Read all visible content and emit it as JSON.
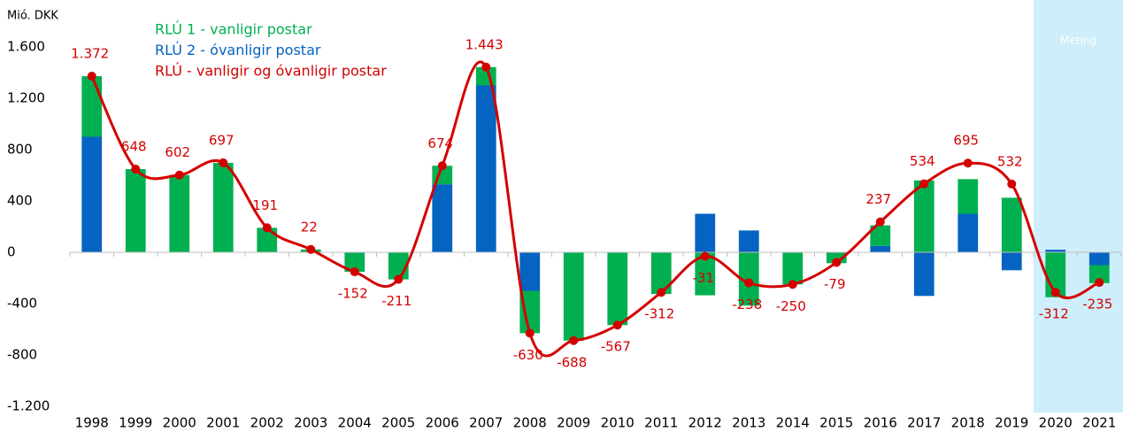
{
  "chart_data": {
    "type": "bar",
    "stacked": true,
    "ylabel": "Mió. DKK",
    "categories": [
      "1998",
      "1999",
      "2000",
      "2001",
      "2002",
      "2003",
      "2004",
      "2005",
      "2006",
      "2007",
      "2008",
      "2009",
      "2010",
      "2011",
      "2012",
      "2013",
      "2014",
      "2015",
      "2016",
      "2017",
      "2018",
      "2019",
      "2020",
      "2021"
    ],
    "series": [
      {
        "name": "RLÚ 2 - óvanligir postar",
        "color": "#0563c1",
        "values": [
          900,
          0,
          0,
          0,
          0,
          0,
          0,
          0,
          530,
          1300,
          -300,
          0,
          0,
          0,
          300,
          170,
          0,
          0,
          50,
          -340,
          300,
          -140,
          20,
          -100
        ]
      },
      {
        "name": "RLÚ 1 - vanligir postar",
        "color": "#00b050",
        "values": [
          472,
          648,
          602,
          697,
          191,
          22,
          -152,
          -211,
          144,
          143,
          -330,
          -688,
          -567,
          -325,
          -335,
          -415,
          -250,
          -85,
          160,
          560,
          270,
          425,
          -350,
          -140
        ]
      },
      {
        "name": "RLÚ - vanligir og óvanligir postar",
        "color": "#d40000",
        "type": "line",
        "values": [
          1372,
          648,
          602,
          697,
          191,
          22,
          -152,
          -211,
          674,
          1443,
          -630,
          -688,
          -567,
          -312,
          -31,
          -238,
          -250,
          -79,
          237,
          534,
          695,
          532,
          -312,
          -235
        ],
        "value_labels": [
          "1.372",
          "648",
          "602",
          "697",
          "191",
          "22",
          "-152",
          "-211",
          "674",
          "1.443",
          "-630",
          "-688",
          "-567",
          "-312",
          "-31",
          "-238",
          "-250",
          "-79",
          "237",
          "534",
          "695",
          "532",
          "-312",
          "-235"
        ]
      }
    ],
    "legend_order": [
      1,
      0,
      2
    ],
    "forecast": {
      "label": "Meting",
      "start": "2020",
      "color": "#cdeefa"
    },
    "ylim": [
      -1200,
      1600
    ],
    "yticks": [
      {
        "value": 1600,
        "label": "1.600"
      },
      {
        "value": 1200,
        "label": "1.200"
      },
      800,
      400,
      0,
      -400,
      -800,
      {
        "value": -1200,
        "label": "-1.200"
      }
    ],
    "grid": false
  }
}
